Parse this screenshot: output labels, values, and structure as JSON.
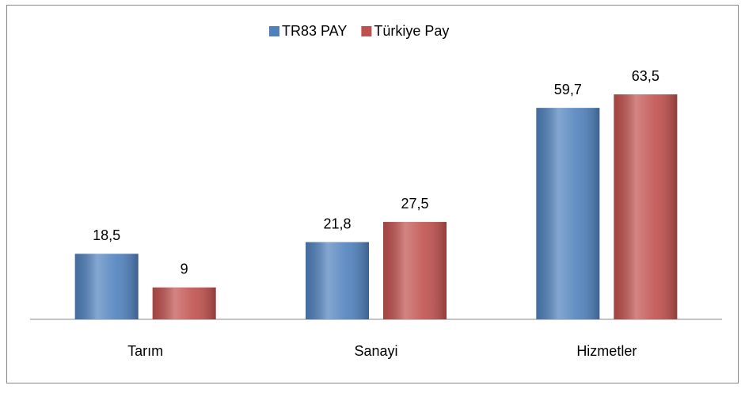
{
  "chart_data": {
    "type": "bar",
    "categories": [
      "Tarım",
      "Sanayi",
      "Hizmetler"
    ],
    "series": [
      {
        "name": "TR83 PAY",
        "color": "#4f81bd",
        "values": [
          18.5,
          21.8,
          59.7
        ],
        "value_labels": [
          "18,5",
          "21,8",
          "59,7"
        ]
      },
      {
        "name": "Türkiye Pay",
        "color": "#c0504d",
        "values": [
          9,
          27.5,
          63.5
        ],
        "value_labels": [
          "9",
          "27,5",
          "63,5"
        ]
      }
    ],
    "legend": "top"
  }
}
